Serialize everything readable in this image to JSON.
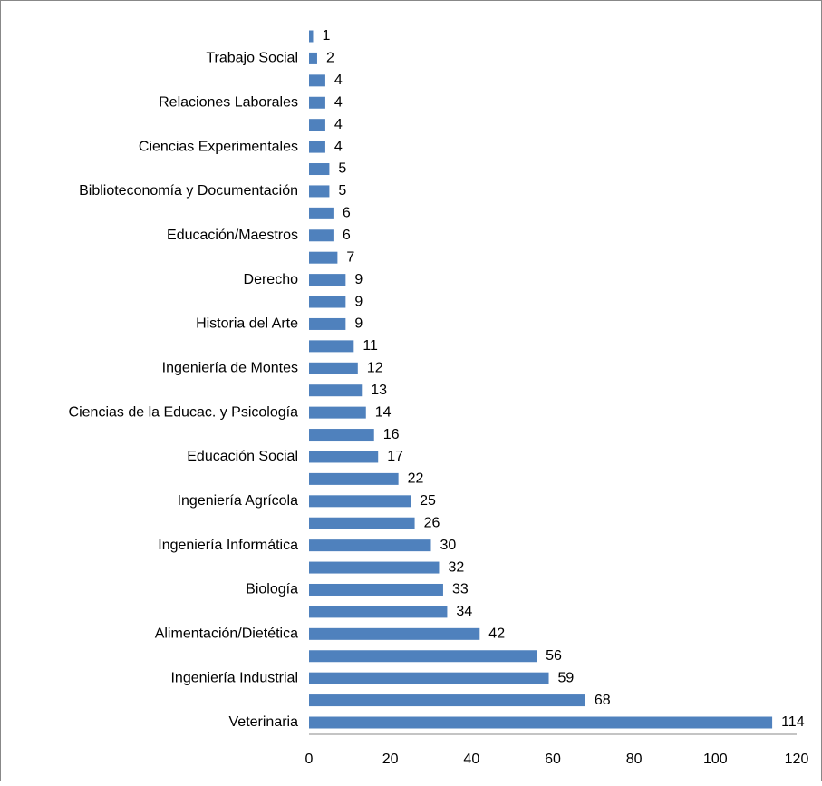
{
  "chart_data": {
    "type": "bar",
    "orientation": "horizontal",
    "categories": [
      null,
      "Trabajo Social",
      null,
      "Relaciones Laborales",
      null,
      "Ciencias Experimentales",
      null,
      "Biblioteconomía y Documentación",
      null,
      "Educación/Maestros",
      null,
      "Derecho",
      null,
      "Historia del Arte",
      null,
      "Ingeniería de Montes",
      null,
      "Ciencias de la Educac. y Psicología",
      null,
      "Educación Social",
      null,
      "Ingeniería Agrícola",
      null,
      "Ingeniería Informática",
      null,
      "Biología",
      null,
      "Alimentación/Dietética",
      null,
      "Ingeniería Industrial",
      null,
      "Veterinaria"
    ],
    "values": [
      1,
      2,
      4,
      4,
      4,
      4,
      5,
      5,
      6,
      6,
      7,
      9,
      9,
      9,
      11,
      12,
      13,
      14,
      16,
      17,
      22,
      25,
      26,
      30,
      32,
      33,
      34,
      42,
      56,
      59,
      68,
      114
    ],
    "color": "#4f81bd",
    "xlim": [
      0,
      120
    ],
    "xticks": [
      0,
      20,
      40,
      60,
      80,
      100,
      120
    ]
  }
}
